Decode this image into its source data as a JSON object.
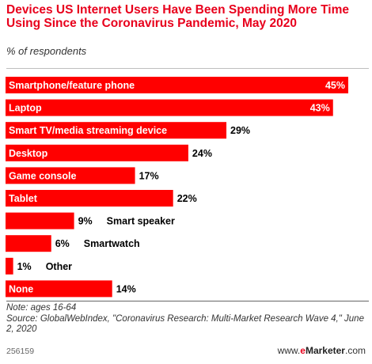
{
  "title": "Devices US Internet Users Have Been Spending More Time Using Since the Coronavirus Pandemic, May 2020",
  "subtitle": "% of respondents",
  "note_line1": "Note: ages 16-64",
  "note_line2": "Source: GlobalWebIndex, \"Coronavirus Research: Multi-Market Research Wave 4,\" June 2, 2020",
  "footer_id": "256159",
  "brand_prefix": "www.",
  "brand_e": "e",
  "brand_name": "Marketer",
  "brand_suffix": ".com",
  "colors": {
    "bar": "#ff0000",
    "title": "#e8001c"
  },
  "chart_data": {
    "type": "bar",
    "orientation": "horizontal",
    "categories": [
      "Smartphone/feature phone",
      "Laptop",
      "Smart TV/media streaming device",
      "Desktop",
      "Game console",
      "Tablet",
      "Smart speaker",
      "Smartwatch",
      "Other",
      "None"
    ],
    "values": [
      45,
      43,
      29,
      24,
      17,
      22,
      9,
      6,
      1,
      14
    ],
    "value_labels": [
      "45%",
      "43%",
      "29%",
      "24%",
      "17%",
      "22%",
      "9%",
      "6%",
      "1%",
      "14%"
    ],
    "unit": "%",
    "xlim": [
      0,
      45
    ],
    "grid": false,
    "legend": "none"
  }
}
